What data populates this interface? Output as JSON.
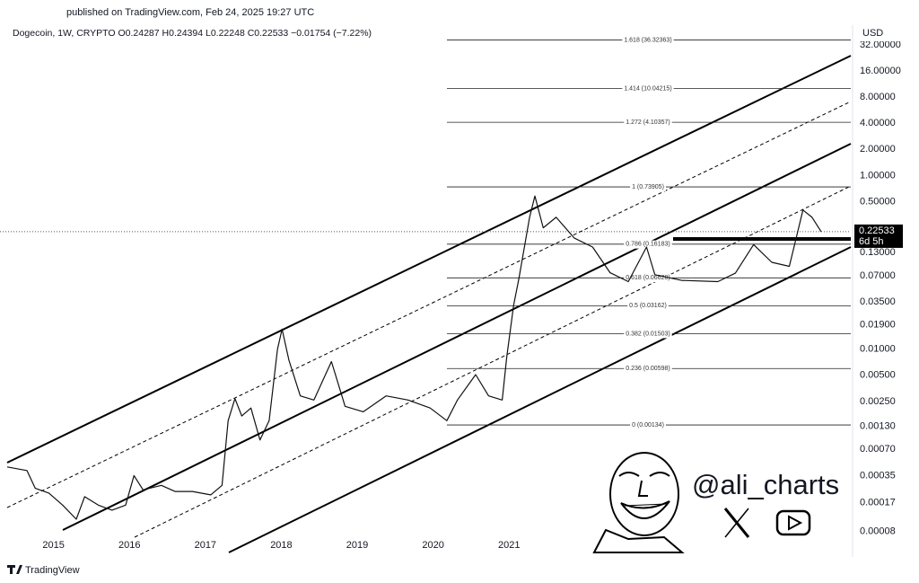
{
  "header": {
    "published": "published on TradingView.com, Feb 24, 2025 19:27 UTC",
    "legend": "Dogecoin, 1W, CRYPTO  O0.24287  H0.24394  L0.22248  C0.22533  −0.01754 (−7.22%)"
  },
  "chart_data": {
    "type": "line",
    "log_scale": true,
    "grid": false,
    "color": "#111111",
    "currency": "USD",
    "x": [
      2014.39,
      2014.65,
      2014.76,
      2014.94,
      2015.12,
      2015.3,
      2015.41,
      2015.59,
      2015.77,
      2015.95,
      2016.06,
      2016.18,
      2016.42,
      2016.6,
      2016.83,
      2017.07,
      2017.22,
      2017.3,
      2017.39,
      2017.48,
      2017.6,
      2017.72,
      2017.84,
      2017.95,
      2018.01,
      2018.1,
      2018.25,
      2018.43,
      2018.66,
      2018.84,
      2019.08,
      2019.38,
      2019.67,
      2019.96,
      2020.18,
      2020.32,
      2020.56,
      2020.73,
      2020.91,
      2020.97,
      2021.06,
      2021.13,
      2021.27,
      2021.34,
      2021.45,
      2021.62,
      2021.86,
      2022.1,
      2022.33,
      2022.57,
      2022.81,
      2022.92,
      2023.27,
      2023.75,
      2023.98,
      2024.22,
      2024.46,
      2024.69,
      2024.87,
      2024.99,
      2025.11
    ],
    "values": [
      0.00044,
      0.0004,
      0.00025,
      0.00022,
      0.00016,
      0.00011,
      0.0002,
      0.00016,
      0.00014,
      0.00016,
      0.00035,
      0.00024,
      0.00027,
      0.00023,
      0.00023,
      0.00021,
      0.00027,
      0.0015,
      0.0027,
      0.0017,
      0.0021,
      0.0009,
      0.0015,
      0.01,
      0.017,
      0.0075,
      0.0029,
      0.0026,
      0.0072,
      0.0022,
      0.0019,
      0.0029,
      0.0026,
      0.0021,
      0.0015,
      0.0026,
      0.0051,
      0.0029,
      0.0026,
      0.0082,
      0.032,
      0.066,
      0.33,
      0.58,
      0.25,
      0.33,
      0.19,
      0.15,
      0.076,
      0.06,
      0.15,
      0.072,
      0.062,
      0.06,
      0.075,
      0.16,
      0.1,
      0.09,
      0.4,
      0.33,
      0.22533
    ],
    "xlim": [
      2014.39,
      2025.5
    ],
    "xticks": [
      2015,
      2016,
      2017,
      2018,
      2019,
      2020,
      2021
    ],
    "ylim": [
      4.56e-05,
      45.6
    ],
    "yticks": [
      {
        "value": 32,
        "label": "32.00000"
      },
      {
        "value": 16,
        "label": "16.00000"
      },
      {
        "value": 8,
        "label": "8.00000"
      },
      {
        "value": 4,
        "label": "4.00000"
      },
      {
        "value": 2,
        "label": "2.00000"
      },
      {
        "value": 1,
        "label": "1.00000"
      },
      {
        "value": 0.5,
        "label": "0.50000"
      },
      {
        "value": 0.13,
        "label": "0.13000"
      },
      {
        "value": 0.07,
        "label": "0.07000"
      },
      {
        "value": 0.035,
        "label": "0.03500"
      },
      {
        "value": 0.019,
        "label": "0.01900"
      },
      {
        "value": 0.01,
        "label": "0.01000"
      },
      {
        "value": 0.005,
        "label": "0.00500"
      },
      {
        "value": 0.0025,
        "label": "0.00250"
      },
      {
        "value": 0.0013,
        "label": "0.00130"
      },
      {
        "value": 0.0007,
        "label": "0.00070"
      },
      0.00035,
      0.00017,
      8e-05
    ],
    "last_price": {
      "value": 0.22533,
      "label": "0.22533"
    },
    "countdown": "6d 5h",
    "fib_levels": [
      {
        "value": 36.32363,
        "label": "1.618 (36.32363)"
      },
      {
        "value": 10.04215,
        "label": "1.414 (10.04215)"
      },
      {
        "value": 4.10357,
        "label": "1.272 (4.10357)"
      },
      {
        "value": 0.73905,
        "label": "1 (0.73905)"
      },
      {
        "value": 0.16183,
        "label": "0.786 (0.16183)"
      },
      {
        "value": 0.06628,
        "label": "0.618 (0.06628)"
      },
      {
        "value": 0.03162,
        "label": "0.5 (0.03162)"
      },
      {
        "value": 0.01503,
        "label": "0.382 (0.01503)"
      },
      {
        "value": 0.00598,
        "label": "0.236 (0.00598)"
      },
      {
        "value": 0.00134,
        "label": "0 (0.00134)"
      }
    ]
  },
  "watermark": {
    "handle": "@ali_charts"
  },
  "footer": {
    "brand": "TradingView"
  }
}
